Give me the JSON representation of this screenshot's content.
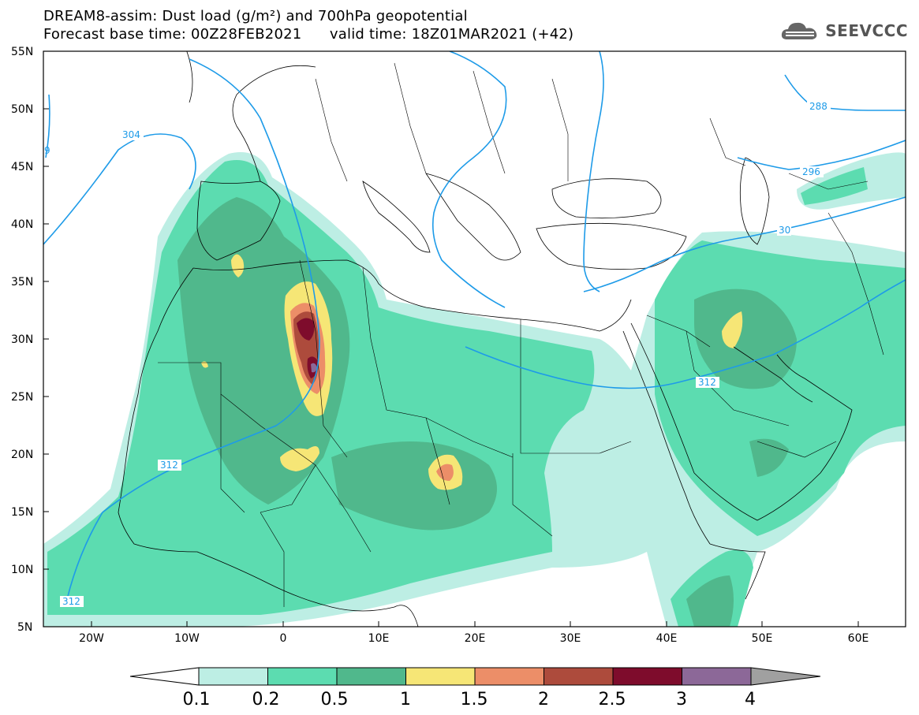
{
  "header": {
    "title_line1": "DREAM8-assim: Dust load (g/m²) and 700hPa geopotential",
    "title_line2": "Forecast base time: 00Z28FEB2021      valid time: 18Z01MAR2021 (+42)",
    "logo_text": "SEEVCCC"
  },
  "map": {
    "lat_labels": [
      "55N",
      "50N",
      "45N",
      "40N",
      "35N",
      "30N",
      "25N",
      "20N",
      "15N",
      "10N",
      "5N"
    ],
    "lon_labels": [
      "20W",
      "10W",
      "0",
      "10E",
      "20E",
      "30E",
      "40E",
      "50E",
      "60E"
    ],
    "contour_labels": [
      "304",
      "288",
      "296",
      "30",
      "312",
      "312",
      "312",
      "9"
    ],
    "contour_color": "#1e9be8"
  },
  "colorbar": {
    "labels": [
      "0.1",
      "0.2",
      "0.5",
      "1",
      "1.5",
      "2",
      "2.5",
      "3",
      "4"
    ],
    "colors": [
      "#bdeee4",
      "#5cdcb0",
      "#50b88c",
      "#f6e676",
      "#ec8e68",
      "#ad4b3c",
      "#7e0c2c",
      "#8c6898"
    ]
  }
}
